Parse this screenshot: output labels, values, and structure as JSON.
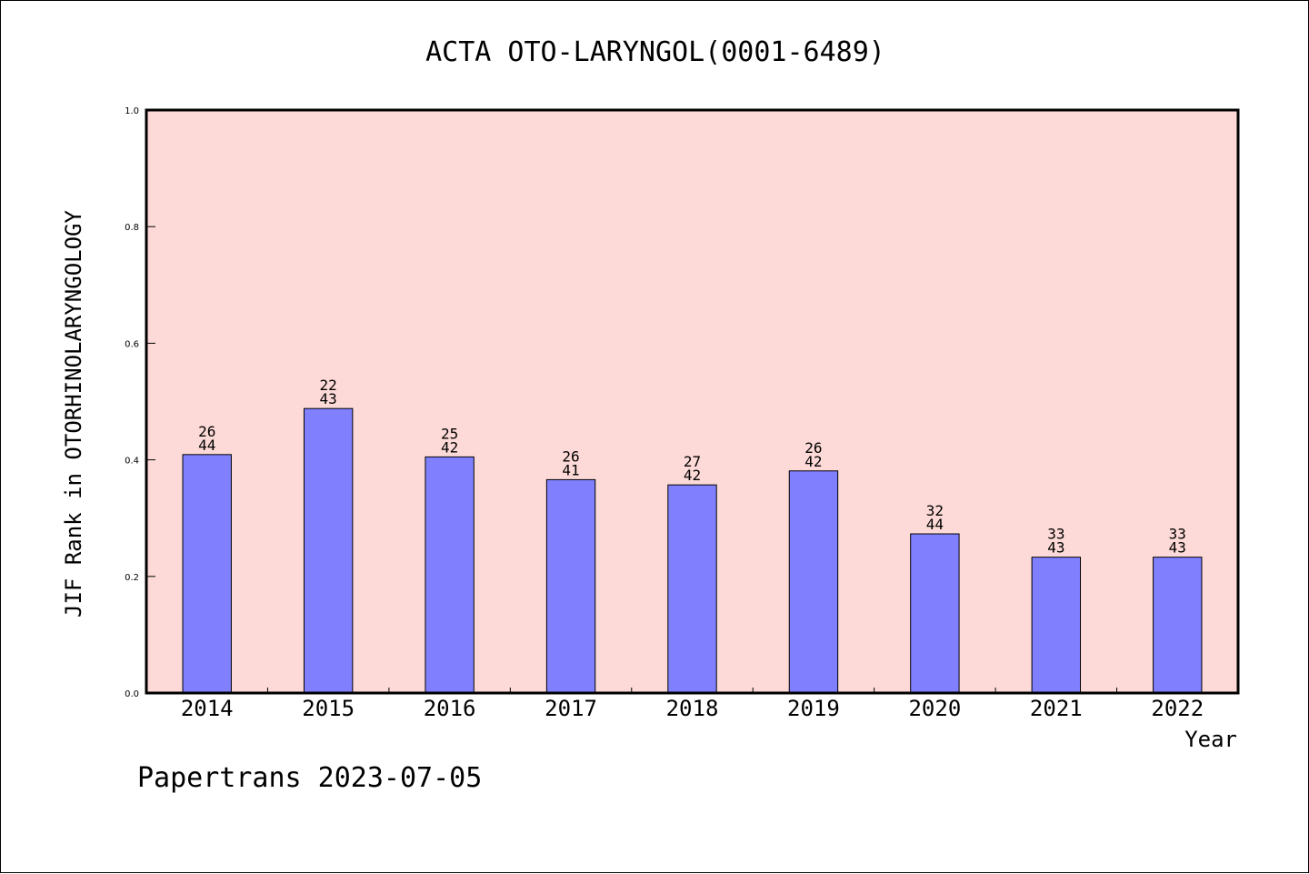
{
  "chart_data": {
    "type": "bar",
    "title": "ACTA OTO-LARYNGOL(0001-6489)",
    "xlabel": "Year",
    "ylabel": "JIF Rank in OTORHINOLARYNGOLOGY",
    "ylim": [
      0,
      1.0
    ],
    "yticks": [
      "0.0",
      "0.2",
      "0.4",
      "0.6",
      "0.8",
      "1.0"
    ],
    "categories": [
      "2014",
      "2015",
      "2016",
      "2017",
      "2018",
      "2019",
      "2020",
      "2021",
      "2022"
    ],
    "values": [
      0.409,
      0.488,
      0.405,
      0.366,
      0.357,
      0.381,
      0.273,
      0.233,
      0.233
    ],
    "labels": [
      {
        "rank": "26",
        "total": "44"
      },
      {
        "rank": "22",
        "total": "43"
      },
      {
        "rank": "25",
        "total": "42"
      },
      {
        "rank": "26",
        "total": "41"
      },
      {
        "rank": "27",
        "total": "42"
      },
      {
        "rank": "26",
        "total": "42"
      },
      {
        "rank": "32",
        "total": "44"
      },
      {
        "rank": "33",
        "total": "43"
      },
      {
        "rank": "33",
        "total": "43"
      }
    ],
    "grid": false,
    "colors": {
      "plot_background": "#fddad7",
      "bar_fill": "#8080ff",
      "bar_edge": "#000000"
    }
  },
  "footer": "Papertrans 2023-07-05"
}
